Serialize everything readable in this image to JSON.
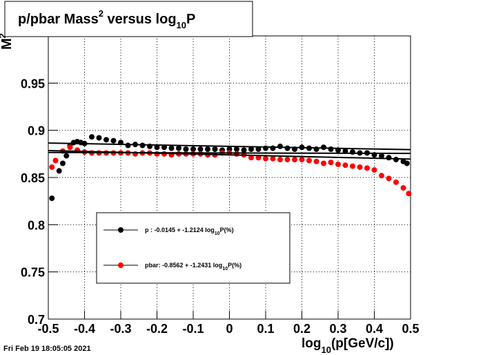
{
  "chart_data": {
    "type": "scatter",
    "title": {
      "main": "p/pbar Mass",
      "sup": "2",
      "mid": " versus log",
      "sub": "10",
      "end": "P"
    },
    "y_label": {
      "main": "M",
      "sup": "2"
    },
    "x_label": {
      "main": "log",
      "sub": "10",
      "end": "(p[GeV/c])"
    },
    "footer": "Fri Feb 19 18:05:05 2021",
    "xlim": [
      -0.5,
      0.5
    ],
    "ylim": [
      0.7,
      1.0
    ],
    "xticks": [
      -0.5,
      -0.4,
      -0.3,
      -0.2,
      -0.1,
      0,
      0.1,
      0.2,
      0.3,
      0.4,
      0.5
    ],
    "yticks": [
      0.7,
      0.75,
      0.8,
      0.85,
      0.9,
      0.95
    ],
    "grid": true,
    "series": [
      {
        "name": {
          "main": "p  : -0.0145 + -1.2124 log",
          "sub": "10",
          "end": "P(%)"
        },
        "color": "#000000",
        "x": [
          -0.49,
          -0.47,
          -0.46,
          -0.45,
          -0.44,
          -0.43,
          -0.42,
          -0.41,
          -0.4,
          -0.38,
          -0.36,
          -0.34,
          -0.32,
          -0.3,
          -0.28,
          -0.26,
          -0.24,
          -0.22,
          -0.2,
          -0.18,
          -0.16,
          -0.14,
          -0.12,
          -0.1,
          -0.08,
          -0.06,
          -0.04,
          -0.02,
          0,
          0.02,
          0.04,
          0.06,
          0.08,
          0.1,
          0.12,
          0.14,
          0.16,
          0.18,
          0.2,
          0.22,
          0.24,
          0.26,
          0.28,
          0.3,
          0.32,
          0.34,
          0.36,
          0.38,
          0.4,
          0.42,
          0.44,
          0.46,
          0.48,
          0.49
        ],
        "values": [
          0.828,
          0.857,
          0.865,
          0.873,
          0.884,
          0.887,
          0.888,
          0.887,
          0.886,
          0.893,
          0.892,
          0.89,
          0.889,
          0.887,
          0.884,
          0.885,
          0.884,
          0.883,
          0.882,
          0.882,
          0.881,
          0.881,
          0.88,
          0.88,
          0.88,
          0.88,
          0.88,
          0.879,
          0.88,
          0.88,
          0.879,
          0.88,
          0.88,
          0.881,
          0.881,
          0.883,
          0.881,
          0.88,
          0.882,
          0.881,
          0.88,
          0.882,
          0.88,
          0.879,
          0.878,
          0.877,
          0.876,
          0.876,
          0.874,
          0.873,
          0.871,
          0.869,
          0.867,
          0.865
        ]
      },
      {
        "name": {
          "main": "pbar: -0.8562 + -1.2431 log",
          "sub": "10",
          "end": "P(%)"
        },
        "color": "#ff0000",
        "x": [
          -0.49,
          -0.48,
          -0.46,
          -0.44,
          -0.42,
          -0.4,
          -0.38,
          -0.36,
          -0.34,
          -0.32,
          -0.3,
          -0.28,
          -0.26,
          -0.24,
          -0.22,
          -0.2,
          -0.18,
          -0.16,
          -0.14,
          -0.12,
          -0.1,
          -0.08,
          -0.06,
          -0.04,
          -0.02,
          0,
          0.02,
          0.04,
          0.06,
          0.08,
          0.1,
          0.12,
          0.14,
          0.16,
          0.18,
          0.2,
          0.22,
          0.24,
          0.26,
          0.28,
          0.3,
          0.32,
          0.34,
          0.36,
          0.38,
          0.4,
          0.42,
          0.44,
          0.46,
          0.48,
          0.495
        ],
        "values": [
          0.861,
          0.868,
          0.878,
          0.882,
          0.879,
          0.877,
          0.876,
          0.876,
          0.876,
          0.876,
          0.876,
          0.876,
          0.875,
          0.876,
          0.876,
          0.875,
          0.875,
          0.874,
          0.875,
          0.875,
          0.875,
          0.875,
          0.874,
          0.874,
          0.876,
          0.876,
          0.875,
          0.874,
          0.871,
          0.871,
          0.87,
          0.87,
          0.869,
          0.869,
          0.869,
          0.869,
          0.868,
          0.867,
          0.865,
          0.866,
          0.864,
          0.863,
          0.862,
          0.861,
          0.86,
          0.858,
          0.852,
          0.849,
          0.845,
          0.839,
          0.833
        ]
      }
    ],
    "fit_lines": [
      {
        "color": "#000000",
        "x": [
          -0.5,
          0.5
        ],
        "y": [
          0.8865,
          0.8795
        ]
      },
      {
        "color": "#000000",
        "x": [
          -0.5,
          0.5
        ],
        "y": [
          0.8765,
          0.8755
        ]
      },
      {
        "color": "#000000",
        "x": [
          -0.5,
          0.5
        ],
        "y": [
          0.8785,
          0.8695
        ]
      }
    ]
  }
}
